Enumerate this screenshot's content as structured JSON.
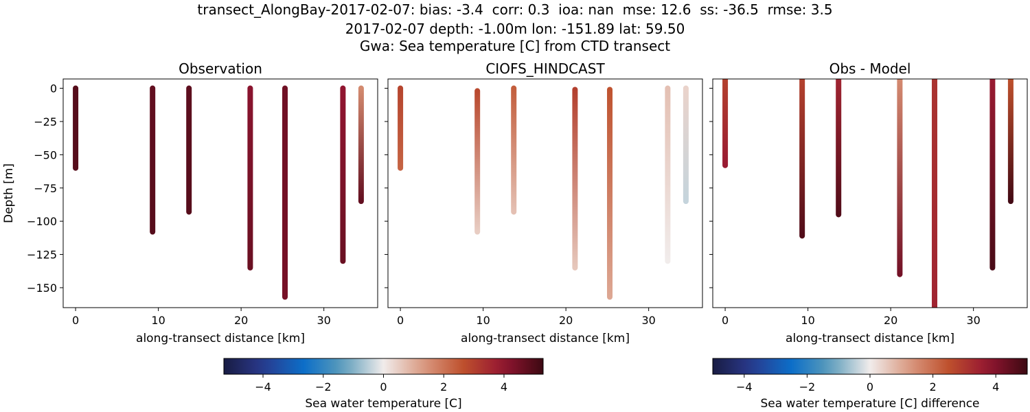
{
  "figure": {
    "title_lines": [
      "transect_AlongBay-2017-02-07: bias: -3.4  corr: 0.3  ioa: nan  mse: 12.6  ss: -36.5  rmse: 3.5",
      "2017-02-07 depth: -1.00m lon: -151.89 lat: 59.50",
      "Gwa: Sea temperature [C] from CTD transect"
    ]
  },
  "chart_data": [
    {
      "type": "scatter",
      "title": "Observation",
      "xlabel": "along-transect distance [km]",
      "ylabel": "Depth [m]",
      "xlim": [
        -1.5,
        36.5
      ],
      "ylim": [
        -165,
        7
      ],
      "xticks": [
        0,
        10,
        20,
        30
      ],
      "yticks": [
        0,
        -25,
        -50,
        -75,
        -100,
        -125,
        -150
      ],
      "colormap": "balance",
      "clim": [
        -5.3,
        5.3
      ],
      "casts": [
        {
          "x": 0.0,
          "top": 0,
          "bottom": -60,
          "value_top": 4.9,
          "value_bottom": 4.9
        },
        {
          "x": 9.3,
          "top": 0,
          "bottom": -108,
          "value_top": 4.7,
          "value_bottom": 4.9
        },
        {
          "x": 13.7,
          "top": 0,
          "bottom": -93,
          "value_top": 4.8,
          "value_bottom": 4.9
        },
        {
          "x": 21.1,
          "top": 0,
          "bottom": -135,
          "value_top": 4.1,
          "value_bottom": 4.6
        },
        {
          "x": 25.3,
          "top": 0,
          "bottom": -157,
          "value_top": 4.5,
          "value_bottom": 4.4
        },
        {
          "x": 32.3,
          "top": 0,
          "bottom": -130,
          "value_top": 4.0,
          "value_bottom": 4.6
        },
        {
          "x": 34.5,
          "top": 0,
          "bottom": -85,
          "value_top": 1.6,
          "value_bottom": 4.7
        }
      ]
    },
    {
      "type": "scatter",
      "title": "CIOFS_HINDCAST",
      "xlabel": "along-transect distance [km]",
      "ylabel": "",
      "xlim": [
        -1.5,
        36.5
      ],
      "ylim": [
        -165,
        7
      ],
      "xticks": [
        0,
        10,
        20,
        30
      ],
      "colormap": "balance",
      "clim": [
        -5.3,
        5.3
      ],
      "casts": [
        {
          "x": 0.0,
          "top": 0,
          "bottom": -60,
          "value_top": 2.9,
          "value_bottom": 2.3
        },
        {
          "x": 9.3,
          "top": -2,
          "bottom": -108,
          "value_top": 2.8,
          "value_bottom": 0.5
        },
        {
          "x": 13.7,
          "top": 0,
          "bottom": -93,
          "value_top": 2.4,
          "value_bottom": 0.7
        },
        {
          "x": 21.1,
          "top": -1,
          "bottom": -135,
          "value_top": 3.0,
          "value_bottom": 0.6
        },
        {
          "x": 25.3,
          "top": -1,
          "bottom": -157,
          "value_top": 2.6,
          "value_bottom": 1.1
        },
        {
          "x": 32.3,
          "top": 0,
          "bottom": -130,
          "value_top": 0.7,
          "value_bottom": 0.0
        },
        {
          "x": 34.5,
          "top": 0,
          "bottom": -85,
          "value_top": 0.4,
          "value_bottom": -0.4
        }
      ]
    },
    {
      "type": "scatter",
      "title": "Obs - Model",
      "xlabel": "along-transect distance [km]",
      "ylabel": "",
      "xlim": [
        -1.5,
        36.5
      ],
      "ylim": [
        -165,
        7
      ],
      "xticks": [
        0,
        10,
        20,
        30
      ],
      "colormap": "balance",
      "clim": [
        -5,
        5
      ],
      "casts": [
        {
          "x": 0.0,
          "top": 7,
          "bottom": -58,
          "value_top": 2.8,
          "value_bottom": 3.6
        },
        {
          "x": 9.3,
          "top": 7,
          "bottom": -111,
          "value_top": 2.8,
          "value_bottom": 4.7
        },
        {
          "x": 13.7,
          "top": 7,
          "bottom": -95,
          "value_top": 3.4,
          "value_bottom": 4.7
        },
        {
          "x": 21.1,
          "top": 7,
          "bottom": -140,
          "value_top": 1.5,
          "value_bottom": 4.2
        },
        {
          "x": 25.3,
          "top": 7,
          "bottom": -165,
          "value_top": 3.1,
          "value_bottom": 3.4
        },
        {
          "x": 32.3,
          "top": 7,
          "bottom": -135,
          "value_top": 3.6,
          "value_bottom": 4.8
        },
        {
          "x": 34.5,
          "top": 7,
          "bottom": -85,
          "value_top": 2.5,
          "value_bottom": 4.9
        }
      ]
    }
  ],
  "colorbars": [
    {
      "label": "Sea water temperature [C]",
      "range": [
        -5.3,
        5.3
      ],
      "ticks": [
        -4,
        -2,
        0,
        2,
        4
      ],
      "tick_labels": [
        "−4",
        "−2",
        "0",
        "2",
        "4"
      ]
    },
    {
      "label": "Sea water temperature [C] difference",
      "range": [
        -5,
        5
      ],
      "ticks": [
        -4,
        -2,
        0,
        2,
        4
      ],
      "tick_labels": [
        "−4",
        "−2",
        "0",
        "2",
        "4"
      ]
    }
  ]
}
